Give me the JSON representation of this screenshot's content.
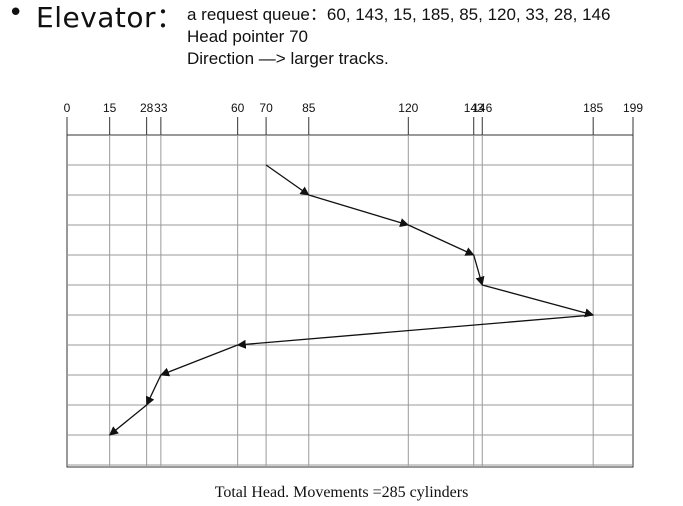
{
  "header": {
    "bullet": "•",
    "title": "Elevator：",
    "queue_line": "a request queue：60, 143, 15, 185, 85, 120, 33, 28, 146",
    "head_line": "Head pointer 70",
    "direction_line": "Direction —> larger tracks."
  },
  "diagram": {
    "axis_ticks": [
      0,
      15,
      28,
      33,
      60,
      70,
      85,
      120,
      143,
      146,
      185,
      199
    ],
    "path_tracks": [
      70,
      85,
      120,
      143,
      146,
      185,
      60,
      33,
      28,
      15
    ],
    "line_color": "#111111",
    "grid_color": "#9a9a9a"
  },
  "caption": "Total Head. Movements =285 cylinders"
}
